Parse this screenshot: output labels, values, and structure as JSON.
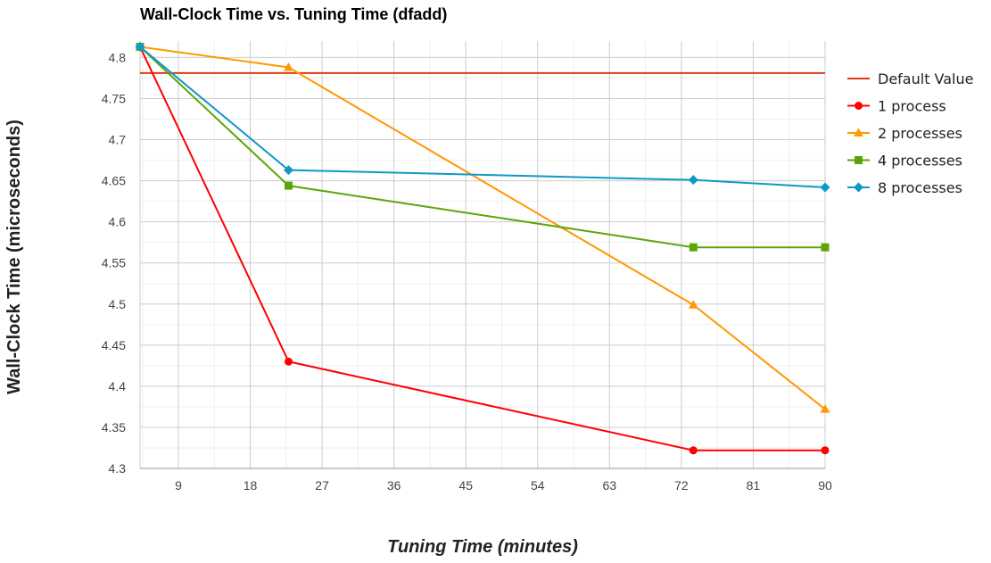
{
  "chart_data": {
    "type": "line",
    "title": "Wall-Clock Time vs. Tuning Time (dfadd)",
    "xlabel": "Tuning Time (minutes)",
    "ylabel": "Wall-Clock Time (microseconds)",
    "xlim": [
      4.2,
      90
    ],
    "ylim": [
      4.3,
      4.82
    ],
    "xticks": [
      9,
      18,
      27,
      36,
      45,
      54,
      63,
      72,
      81,
      90
    ],
    "yticks": [
      4.3,
      4.35,
      4.4,
      4.45,
      4.5,
      4.55,
      4.6,
      4.65,
      4.7,
      4.75,
      4.8
    ],
    "grid": true,
    "legend_position": "right",
    "series": [
      {
        "name": "Default Value",
        "color": "#dc3912",
        "marker": "none",
        "x": [
          4.2,
          90
        ],
        "y": [
          4.781,
          4.781
        ]
      },
      {
        "name": "1 process",
        "color": "#ff0000",
        "marker": "circle",
        "x": [
          4.2,
          22.8,
          73.5,
          90
        ],
        "y": [
          4.813,
          4.43,
          4.322,
          4.322
        ]
      },
      {
        "name": "2 processes",
        "color": "#ff9900",
        "marker": "triangle",
        "x": [
          4.2,
          22.8,
          73.5,
          90
        ],
        "y": [
          4.813,
          4.788,
          4.499,
          4.372
        ]
      },
      {
        "name": "4 processes",
        "color": "#5aa608",
        "marker": "square",
        "x": [
          4.2,
          22.8,
          73.5,
          90
        ],
        "y": [
          4.813,
          4.644,
          4.569,
          4.569
        ]
      },
      {
        "name": "8 processes",
        "color": "#0f99c6",
        "marker": "diamond",
        "x": [
          4.2,
          22.8,
          73.5,
          90
        ],
        "y": [
          4.813,
          4.663,
          4.651,
          4.642
        ]
      }
    ]
  }
}
